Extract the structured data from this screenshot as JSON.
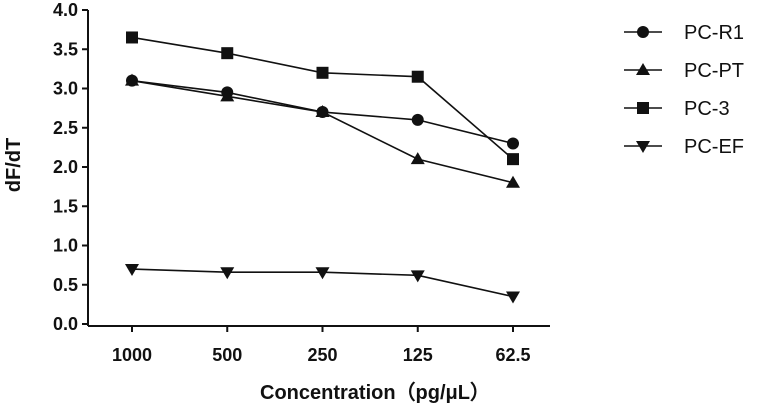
{
  "chart_data": {
    "type": "line",
    "title": "",
    "xlabel": "Concentration（pg/μL）",
    "ylabel": "dF/dT",
    "categories": [
      "1000",
      "500",
      "250",
      "125",
      "62.5"
    ],
    "ylim": [
      0,
      4.0
    ],
    "yticks": [
      "0.0",
      "0.5",
      "1.0",
      "1.5",
      "2.0",
      "2.5",
      "3.0",
      "3.5",
      "4.0"
    ],
    "grid": false,
    "legend_position": "right",
    "series": [
      {
        "name": "PC-R1",
        "marker": "circle",
        "color": "#111111",
        "values": [
          3.1,
          2.95,
          2.7,
          2.6,
          2.3
        ]
      },
      {
        "name": "PC-PT",
        "marker": "triangle-up",
        "color": "#111111",
        "values": [
          3.1,
          2.9,
          2.7,
          2.1,
          1.8
        ]
      },
      {
        "name": "PC-3",
        "marker": "square",
        "color": "#111111",
        "values": [
          3.65,
          3.45,
          3.2,
          3.15,
          2.1
        ]
      },
      {
        "name": "PC-EF",
        "marker": "triangle-down",
        "color": "#111111",
        "values": [
          0.7,
          0.66,
          0.66,
          0.62,
          0.35
        ]
      }
    ]
  }
}
